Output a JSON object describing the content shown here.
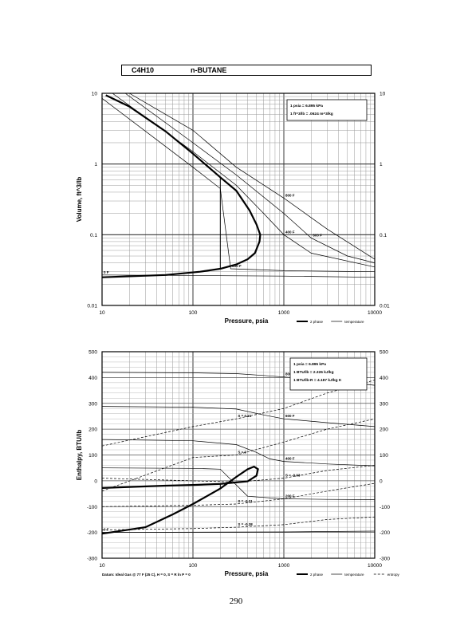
{
  "header": {
    "formula": "C4H10",
    "compound": "n-BUTANE"
  },
  "page_number": "290",
  "chart_data": [
    {
      "type": "line",
      "xscale": "log",
      "yscale": "log",
      "xlim": [
        10,
        10000
      ],
      "ylim": [
        0.01,
        10
      ],
      "xlabel": "Pressure,  psia",
      "ylabel": "Volume,  ft^3/lb",
      "x_ticks": [
        "10",
        "100",
        "1000",
        "10000"
      ],
      "y_ticks": [
        "0.01",
        "0.1",
        "1",
        "10"
      ],
      "conversions": [
        "1 psia = 6.895 kPa",
        "1 ft^3/lb = .0624 m^3/kg"
      ],
      "legend": [
        "2 phase",
        "temperature"
      ],
      "dome": [
        [
          10,
          0.025
        ],
        [
          50,
          0.027
        ],
        [
          120,
          0.03
        ],
        [
          200,
          0.033
        ],
        [
          300,
          0.038
        ],
        [
          400,
          0.045
        ],
        [
          480,
          0.055
        ],
        [
          540,
          0.08
        ],
        [
          550,
          0.1
        ],
        [
          500,
          0.14
        ],
        [
          420,
          0.22
        ],
        [
          300,
          0.42
        ],
        [
          200,
          0.65
        ],
        [
          100,
          1.4
        ],
        [
          50,
          2.9
        ],
        [
          20,
          6.5
        ],
        [
          11,
          9.4
        ]
      ],
      "tie_line_x": 200,
      "isotherms": [
        {
          "label": "800 F",
          "points": [
            [
              20,
              10
            ],
            [
              100,
              3.0
            ],
            [
              300,
              0.9
            ],
            [
              1000,
              0.33
            ],
            [
              3000,
              0.12
            ],
            [
              10000,
              0.045
            ]
          ]
        },
        {
          "label": "600 F",
          "points": [
            [
              18,
              10
            ],
            [
              100,
              2.0
            ],
            [
              300,
              0.7
            ],
            [
              1000,
              0.2
            ],
            [
              2000,
              0.09
            ],
            [
              5000,
              0.05
            ],
            [
              10000,
              0.04
            ]
          ]
        },
        {
          "label": "400 F",
          "points": [
            [
              13,
              10
            ],
            [
              100,
              1.5
            ],
            [
              300,
              0.5
            ],
            [
              600,
              0.2
            ],
            [
              1000,
              0.1
            ],
            [
              2000,
              0.055
            ],
            [
              10000,
              0.035
            ]
          ]
        },
        {
          "label": "200 F",
          "points": [
            [
              10,
              8.5
            ],
            [
              100,
              0.9
            ],
            [
              200,
              0.45
            ],
            [
              260,
              0.033
            ],
            [
              1000,
              0.031
            ],
            [
              10000,
              0.03
            ]
          ]
        },
        {
          "label": "0 F",
          "points": [
            [
              10,
              0.027
            ],
            [
              1000,
              0.026
            ],
            [
              10000,
              0.025
            ]
          ]
        }
      ]
    },
    {
      "type": "line",
      "xscale": "log",
      "yscale": "linear",
      "xlim": [
        10,
        10000
      ],
      "ylim": [
        -300,
        500
      ],
      "xlabel": "Pressure,  psia",
      "ylabel": "Enthalpy,  BTU/lb",
      "x_ticks": [
        "10",
        "100",
        "1000",
        "10000"
      ],
      "y_ticks": [
        "-300",
        "-200",
        "-100",
        "0",
        "100",
        "200",
        "300",
        "400",
        "500"
      ],
      "conversions": [
        "1 psia = 6.895 kPa",
        "1 BTU/lb = 2.326 kJ/kg",
        "1 BTU/lb-R = 4.187 kJ/kg K"
      ],
      "legend": [
        "2 phase",
        "temperature",
        "entropy"
      ],
      "datum": "Datum: Ideal Gas @ 77 F (25 C), H = 0, S = R ln P = 0",
      "dome": [
        [
          10,
          -205
        ],
        [
          30,
          -180
        ],
        [
          60,
          -130
        ],
        [
          100,
          -90
        ],
        [
          200,
          -30
        ],
        [
          300,
          15
        ],
        [
          400,
          45
        ],
        [
          470,
          55
        ],
        [
          520,
          45
        ],
        [
          500,
          20
        ],
        [
          400,
          -2
        ],
        [
          200,
          -12
        ],
        [
          100,
          -16
        ],
        [
          50,
          -19
        ],
        [
          20,
          -24
        ],
        [
          10,
          -28
        ]
      ],
      "tie_line_x": 200,
      "isotherms": [
        {
          "label": "800 F",
          "points": [
            [
              10,
              420
            ],
            [
              100,
              418
            ],
            [
              300,
              415
            ],
            [
              600,
              408
            ],
            [
              1000,
              402
            ],
            [
              3000,
              390
            ],
            [
              10000,
              370
            ]
          ]
        },
        {
          "label": "600 F",
          "points": [
            [
              10,
              288
            ],
            [
              100,
              285
            ],
            [
              300,
              278
            ],
            [
              600,
              255
            ],
            [
              1000,
              240
            ],
            [
              3000,
              225
            ],
            [
              10000,
              210
            ]
          ]
        },
        {
          "label": "400 F",
          "points": [
            [
              10,
              160
            ],
            [
              100,
              155
            ],
            [
              300,
              140
            ],
            [
              500,
              110
            ],
            [
              700,
              85
            ],
            [
              1000,
              75
            ],
            [
              3000,
              65
            ],
            [
              10000,
              58
            ]
          ]
        },
        {
          "label": "200 F",
          "points": [
            [
              10,
              50
            ],
            [
              100,
              48
            ],
            [
              200,
              45
            ],
            [
              400,
              -60
            ],
            [
              1000,
              -70
            ],
            [
              3000,
              -72
            ],
            [
              10000,
              -73
            ]
          ]
        },
        {
          "label": "0 F",
          "points": [
            [
              10,
              -200
            ],
            [
              1000,
              -198
            ],
            [
              10000,
              -195
            ]
          ]
        }
      ],
      "entropy_lines": [
        {
          "label": "S = 0.21",
          "points": [
            [
              10,
              135
            ],
            [
              100,
              210
            ],
            [
              300,
              240
            ],
            [
              1000,
              280
            ],
            [
              3000,
              340
            ],
            [
              10000,
              390
            ]
          ]
        },
        {
          "label": "S = 0",
          "points": [
            [
              10,
              -40
            ],
            [
              100,
              90
            ],
            [
              300,
              100
            ],
            [
              1000,
              150
            ],
            [
              3000,
              200
            ],
            [
              10000,
              240
            ]
          ]
        },
        {
          "label": "S = -0.03",
          "points": [
            [
              10,
              10
            ],
            [
              300,
              -5
            ],
            [
              1000,
              10
            ],
            [
              3000,
              40
            ],
            [
              10000,
              60
            ]
          ]
        },
        {
          "label": "S = -0.21",
          "points": [
            [
              10,
              -100
            ],
            [
              100,
              -95
            ],
            [
              300,
              -90
            ],
            [
              1000,
              -70
            ],
            [
              3000,
              -40
            ],
            [
              10000,
              -10
            ]
          ]
        },
        {
          "label": "S = -0.38",
          "points": [
            [
              10,
              -190
            ],
            [
              100,
              -185
            ],
            [
              300,
              -180
            ],
            [
              1000,
              -170
            ],
            [
              3000,
              -150
            ],
            [
              10000,
              -140
            ]
          ]
        }
      ]
    }
  ]
}
